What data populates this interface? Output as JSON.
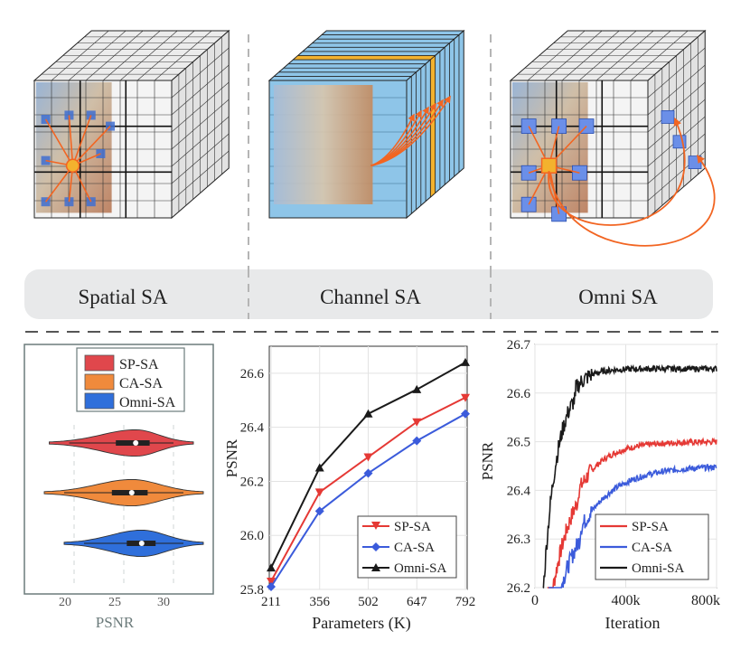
{
  "banner": {
    "labels": [
      "Spatial SA",
      "Channel SA",
      "Omni SA"
    ]
  },
  "colors": {
    "sp": "#e53935",
    "ca": "#f08a3c",
    "omni": "#2f6fdb",
    "blue_line": "#3b5bdb",
    "black": "#1a1a1a",
    "orange_arrow": "#f26522",
    "channel_blue": "#8ec5e8",
    "channel_orange": "#f3b22e"
  },
  "chart_data": [
    {
      "type": "violin",
      "legend": [
        "SP-SA",
        "CA-SA",
        "Omni-SA"
      ],
      "xlabel": "PSNR",
      "ticks": [
        20,
        25,
        30
      ],
      "xlim": [
        15,
        34
      ],
      "series": [
        {
          "name": "SP-SA",
          "range": [
            17.5,
            32
          ],
          "q1": 24.2,
          "median": 26.2,
          "q3": 27.6
        },
        {
          "name": "CA-SA",
          "range": [
            17,
            33
          ],
          "q1": 23.8,
          "median": 25.8,
          "q3": 27.4
        },
        {
          "name": "Omni-SA",
          "range": [
            19,
            33
          ],
          "q1": 25.3,
          "median": 26.8,
          "q3": 28.2
        }
      ]
    },
    {
      "type": "line",
      "xlabel": "Parameters (K)",
      "ylabel": "PSNR",
      "categories": [
        "211",
        "356",
        "502",
        "647",
        "792"
      ],
      "ylim": [
        25.8,
        26.7
      ],
      "yticks": [
        "25.8",
        "26.0",
        "26.2",
        "26.4",
        "26.6"
      ],
      "series": [
        {
          "name": "SP-SA",
          "values": [
            25.83,
            26.16,
            26.29,
            26.42,
            26.51
          ]
        },
        {
          "name": "CA-SA",
          "values": [
            25.81,
            26.09,
            26.23,
            26.35,
            26.45
          ]
        },
        {
          "name": "Omni-SA",
          "values": [
            25.88,
            26.25,
            26.45,
            26.54,
            26.64
          ]
        }
      ]
    },
    {
      "type": "line",
      "xlabel": "Iteration",
      "ylabel": "PSNR",
      "xticks": [
        "0",
        "400k",
        "800k"
      ],
      "xlim": [
        0,
        800000
      ],
      "ylim": [
        26.2,
        26.7
      ],
      "yticks": [
        "26.2",
        "26.3",
        "26.4",
        "26.5",
        "26.6",
        "26.7"
      ],
      "series": [
        {
          "name": "SP-SA",
          "final": 26.5
        },
        {
          "name": "CA-SA",
          "final": 26.45
        },
        {
          "name": "Omni-SA",
          "final": 26.65
        }
      ]
    }
  ]
}
